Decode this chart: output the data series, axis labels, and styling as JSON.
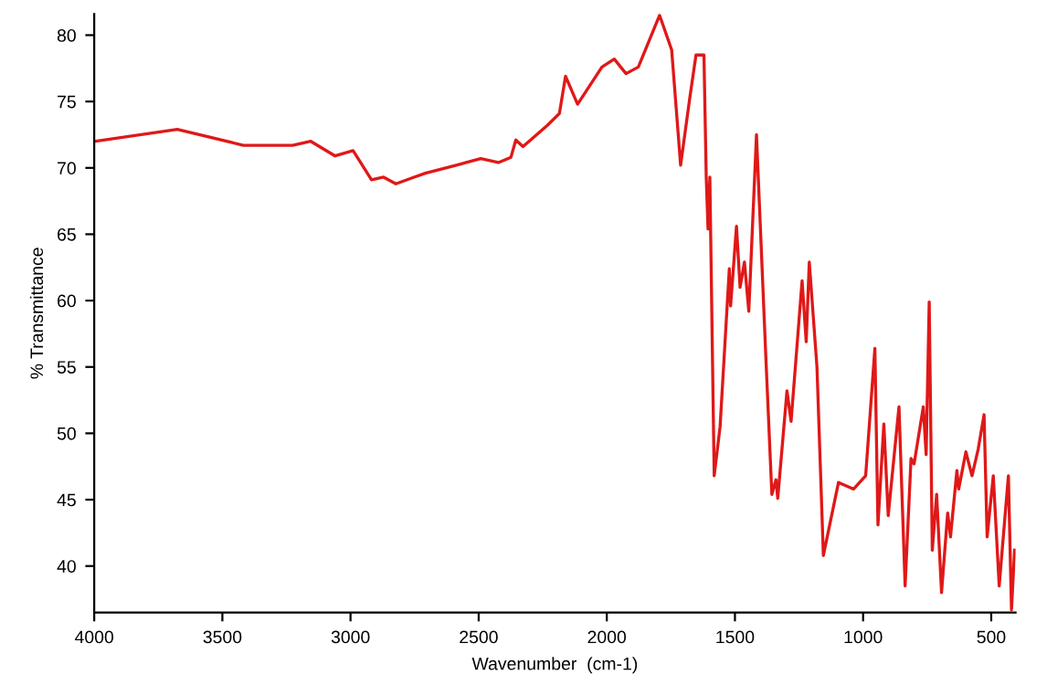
{
  "chart_data": {
    "type": "line",
    "xlabel": "Wavenumber  (cm-1)",
    "ylabel": "% Transmittance",
    "xlim": [
      4000,
      405
    ],
    "ylim": [
      36.5,
      81.6
    ],
    "xticks": [
      4000,
      3500,
      3000,
      2500,
      2000,
      1500,
      1000,
      500
    ],
    "yticks": [
      40,
      45,
      50,
      55,
      60,
      65,
      70,
      75,
      80
    ],
    "grid": false,
    "legend": false,
    "marker": "none",
    "line_style": "solid",
    "series": [
      {
        "color": "#e01818",
        "x": [
          3995,
          3676,
          3418,
          3226,
          3155,
          3060,
          2990,
          2918,
          2871,
          2823,
          2752,
          2708,
          2587,
          2492,
          2423,
          2374,
          2355,
          2327,
          2232,
          2185,
          2161,
          2114,
          2019,
          1971,
          1925,
          1877,
          1794,
          1747,
          1712,
          1676,
          1652,
          1621,
          1612,
          1605,
          1598,
          1581,
          1558,
          1522,
          1517,
          1494,
          1480,
          1463,
          1446,
          1416,
          1380,
          1356,
          1340,
          1333,
          1297,
          1281,
          1238,
          1222,
          1210,
          1180,
          1155,
          1096,
          1037,
          990,
          954,
          942,
          919,
          902,
          860,
          836,
          813,
          801,
          765,
          754,
          742,
          730,
          713,
          694,
          670,
          659,
          634,
          627,
          599,
          575,
          551,
          528,
          516,
          492,
          469,
          433,
          421,
          409
        ],
        "values": [
          72.0,
          72.9,
          71.7,
          71.7,
          72.0,
          70.9,
          71.3,
          69.1,
          69.3,
          68.8,
          69.3,
          69.6,
          70.2,
          70.7,
          70.4,
          70.8,
          72.1,
          71.6,
          73.2,
          74.1,
          76.9,
          74.8,
          77.6,
          78.2,
          77.1,
          77.6,
          81.5,
          78.9,
          70.2,
          75.3,
          78.5,
          78.5,
          69.3,
          65.4,
          69.3,
          46.8,
          50.5,
          62.4,
          59.6,
          65.6,
          61.0,
          62.9,
          59.2,
          72.5,
          56.0,
          45.4,
          46.5,
          45.1,
          53.2,
          50.9,
          61.5,
          56.9,
          62.9,
          55.0,
          40.8,
          46.3,
          45.8,
          46.8,
          56.4,
          43.1,
          50.7,
          43.8,
          52.0,
          38.5,
          48.1,
          47.7,
          52.0,
          48.4,
          59.9,
          41.2,
          45.4,
          38.0,
          44.0,
          42.2,
          47.2,
          45.8,
          48.6,
          46.8,
          48.8,
          51.4,
          42.2,
          46.8,
          38.5,
          46.8,
          36.7,
          41.2
        ]
      }
    ]
  }
}
